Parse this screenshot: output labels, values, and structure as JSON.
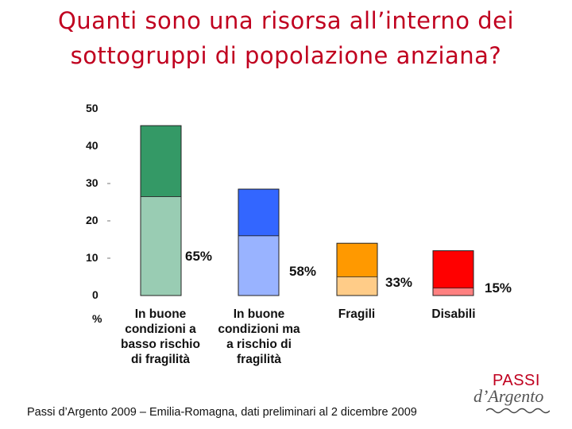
{
  "title": {
    "line1": "Quanti sono una risorsa all’interno dei",
    "line2": "sottogruppi di popolazione anziana?"
  },
  "chart_data": {
    "type": "bar",
    "stacked": true,
    "ylim": [
      0,
      50
    ],
    "yticks": [
      "50",
      "40",
      "30",
      "20",
      "10",
      "0"
    ],
    "ylabel": "%",
    "grid": false,
    "categories": [
      [
        "In buone",
        "condizioni a",
        "basso rischio",
        "di fragilità"
      ],
      [
        "In buone",
        "condizioni ma",
        "a rischio di",
        "fragilità"
      ],
      [
        "Fragili"
      ],
      [
        "Disabili"
      ]
    ],
    "totals": [
      45.5,
      28.5,
      14.0,
      12.0
    ],
    "resource_values": [
      26.5,
      16.0,
      5.0,
      2.0
    ],
    "share_labels": [
      "65%",
      "58%",
      "33%",
      "15%"
    ],
    "colors": {
      "top": [
        "#349966",
        "#3366ff",
        "#ff9900",
        "#ff0000"
      ],
      "bottom": [
        "#99ccb3",
        "#99b3ff",
        "#ffcc88",
        "#ff8080"
      ]
    }
  },
  "footer": "Passi d’Argento 2009 – Emilia-Romagna, dati preliminari al 2 dicembre 2009",
  "logo": {
    "passi": "PASSI",
    "argento": "d’Argento"
  }
}
